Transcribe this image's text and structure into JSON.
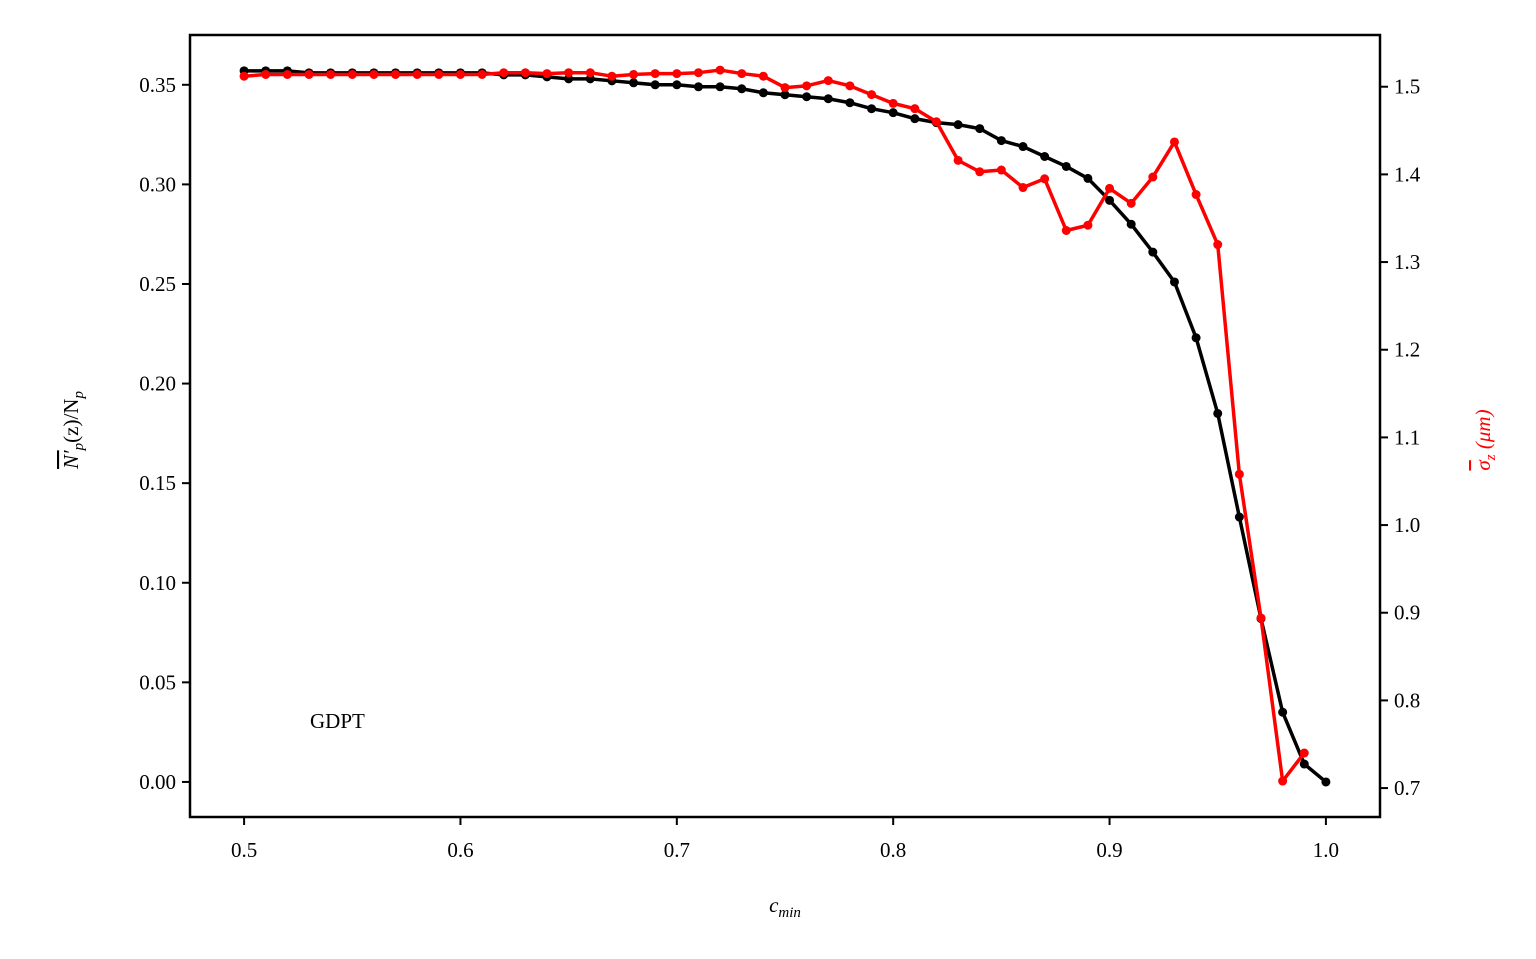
{
  "chart_data": {
    "type": "line",
    "xlabel": {
      "base": "c",
      "sub": "min"
    },
    "ylabel": {
      "parts": [
        "N′",
        "p",
        "(z)/N",
        "p"
      ]
    },
    "y2label": {
      "parts": [
        "σ",
        "z",
        " (μm)"
      ]
    },
    "annotation": "GDPT",
    "xlim": [
      0.475,
      1.025
    ],
    "xticks": [
      0.5,
      0.6,
      0.7,
      0.8,
      0.9,
      {
        "value": 1,
        "label": "1.0"
      }
    ],
    "ylim": [
      -0.0176,
      0.375
    ],
    "yticks": [
      {
        "value": 0,
        "label": "0.00"
      },
      0.05,
      {
        "value": 0.1,
        "label": "0.10"
      },
      0.15,
      {
        "value": 0.2,
        "label": "0.20"
      },
      0.25,
      {
        "value": 0.3,
        "label": "0.30"
      },
      0.35
    ],
    "y2lim": [
      0.667,
      1.559
    ],
    "y2ticks": [
      0.7,
      0.8,
      0.9,
      {
        "value": 1,
        "label": "1.0"
      },
      1.1,
      1.2,
      1.3,
      1.4,
      1.5
    ],
    "series": [
      {
        "color": "#000000",
        "x": [
          0.5,
          0.51,
          0.52,
          0.53,
          0.54,
          0.55,
          0.56,
          0.57,
          0.58,
          0.59,
          0.6,
          0.61,
          0.62,
          0.63,
          0.64,
          0.65,
          0.66,
          0.67,
          0.68,
          0.69,
          0.7,
          0.71,
          0.72,
          0.73,
          0.74,
          0.75,
          0.76,
          0.77,
          0.78,
          0.79,
          0.8,
          0.81,
          0.82,
          0.83,
          0.84,
          0.85,
          0.86,
          0.87,
          0.88,
          0.89,
          0.9,
          0.91,
          0.92,
          0.93,
          0.94,
          0.95,
          0.96,
          0.97,
          0.98,
          0.99,
          1.0
        ],
        "values": [
          0.357,
          0.357,
          0.357,
          0.356,
          0.356,
          0.356,
          0.356,
          0.356,
          0.356,
          0.356,
          0.356,
          0.356,
          0.355,
          0.355,
          0.354,
          0.353,
          0.353,
          0.352,
          0.351,
          0.35,
          0.35,
          0.349,
          0.349,
          0.348,
          0.346,
          0.345,
          0.344,
          0.343,
          0.341,
          0.338,
          0.336,
          0.333,
          0.331,
          0.33,
          0.328,
          0.322,
          0.319,
          0.314,
          0.309,
          0.303,
          0.292,
          0.28,
          0.266,
          0.251,
          0.223,
          0.185,
          0.133,
          0.082,
          0.035,
          0.009,
          0.0
        ]
      },
      {
        "color": "#ff0000",
        "axis": "y2",
        "x": [
          0.5,
          0.51,
          0.52,
          0.53,
          0.54,
          0.55,
          0.56,
          0.57,
          0.58,
          0.59,
          0.6,
          0.61,
          0.62,
          0.63,
          0.64,
          0.65,
          0.66,
          0.67,
          0.68,
          0.69,
          0.7,
          0.71,
          0.72,
          0.73,
          0.74,
          0.75,
          0.76,
          0.77,
          0.78,
          0.79,
          0.8,
          0.81,
          0.82,
          0.83,
          0.84,
          0.85,
          0.86,
          0.87,
          0.88,
          0.89,
          0.9,
          0.91,
          0.92,
          0.93,
          0.94,
          0.95,
          0.96,
          0.97,
          0.98,
          0.99
        ],
        "values": [
          1.512,
          1.514,
          1.514,
          1.514,
          1.514,
          1.514,
          1.514,
          1.514,
          1.514,
          1.514,
          1.514,
          1.514,
          1.516,
          1.516,
          1.515,
          1.516,
          1.516,
          1.512,
          1.514,
          1.515,
          1.515,
          1.516,
          1.519,
          1.515,
          1.512,
          1.499,
          1.501,
          1.507,
          1.501,
          1.491,
          1.481,
          1.475,
          1.46,
          1.416,
          1.403,
          1.405,
          1.385,
          1.395,
          1.336,
          1.342,
          1.384,
          1.367,
          1.397,
          1.437,
          1.377,
          1.32,
          1.058,
          0.894,
          0.708,
          0.74
        ]
      }
    ]
  }
}
